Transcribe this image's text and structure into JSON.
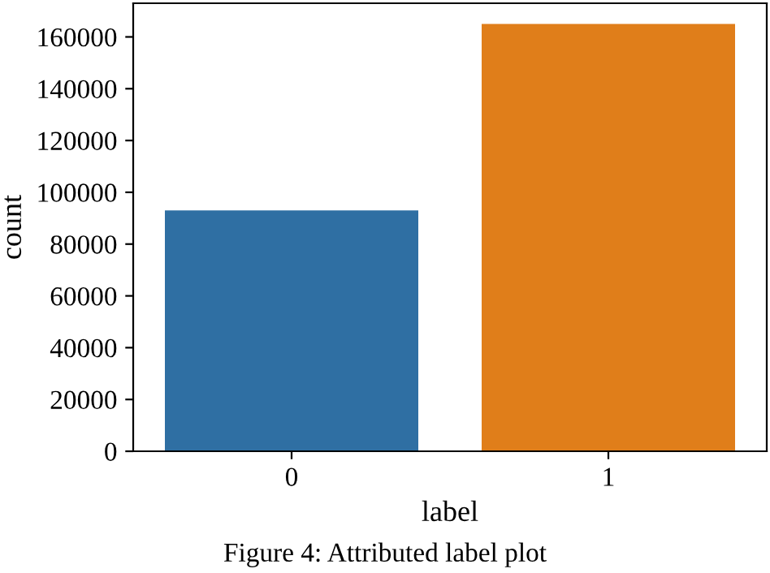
{
  "chart_data": {
    "type": "bar",
    "xlabel": "label",
    "ylabel": "count",
    "categories": [
      "0",
      "1"
    ],
    "values": [
      93000,
      165000
    ],
    "colors": [
      "#2f6fa3",
      "#e07e1a"
    ],
    "ylim": [
      0,
      173000
    ],
    "yticks": [
      0,
      20000,
      40000,
      60000,
      80000,
      100000,
      120000,
      140000,
      160000
    ],
    "grid": false,
    "annotations": [
      "Figure 4: Attributed label plot"
    ]
  }
}
